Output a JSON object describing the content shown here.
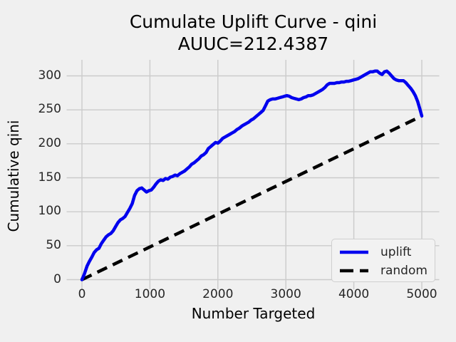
{
  "title": {
    "line1": "Cumulate Uplift Curve - qini",
    "line2": "AUUC=212.4387"
  },
  "axes": {
    "xlabel": "Number Targeted",
    "ylabel": "Cumulative qini"
  },
  "legend": {
    "items": [
      {
        "label": "uplift",
        "color": "#0000ee",
        "style": "solid"
      },
      {
        "label": "random",
        "color": "#000000",
        "style": "dashed"
      }
    ]
  },
  "colors": {
    "background": "#f0f0f0",
    "grid": "#cbcbcb",
    "uplift": "#0000ee",
    "random": "#000000",
    "tick_text": "#262626"
  },
  "chart_data": {
    "type": "line",
    "title": "Cumulate Uplift Curve - qini AUUC=212.4387",
    "xlabel": "Number Targeted",
    "ylabel": "Cumulative qini",
    "xticks": [
      0,
      1000,
      2000,
      3000,
      4000,
      5000
    ],
    "yticks": [
      0,
      50,
      100,
      150,
      200,
      250,
      300
    ],
    "xlim": [
      -225,
      5260
    ],
    "ylim": [
      -14,
      323
    ],
    "grid": true,
    "legend_position": "lower right",
    "auuc": 212.4387,
    "series": [
      {
        "name": "uplift",
        "color": "#0000ee",
        "style": "solid",
        "points": [
          [
            0,
            0
          ],
          [
            35,
            8
          ],
          [
            75,
            20
          ],
          [
            110,
            27
          ],
          [
            145,
            33
          ],
          [
            180,
            40
          ],
          [
            215,
            44
          ],
          [
            250,
            46
          ],
          [
            285,
            53
          ],
          [
            320,
            58
          ],
          [
            355,
            63
          ],
          [
            390,
            66
          ],
          [
            425,
            68
          ],
          [
            460,
            72
          ],
          [
            495,
            78
          ],
          [
            530,
            84
          ],
          [
            565,
            88
          ],
          [
            600,
            90
          ],
          [
            635,
            93
          ],
          [
            670,
            99
          ],
          [
            705,
            105
          ],
          [
            740,
            112
          ],
          [
            775,
            124
          ],
          [
            810,
            131
          ],
          [
            845,
            134
          ],
          [
            880,
            135
          ],
          [
            915,
            132
          ],
          [
            950,
            129
          ],
          [
            985,
            131
          ],
          [
            1020,
            132
          ],
          [
            1055,
            136
          ],
          [
            1090,
            141
          ],
          [
            1125,
            145
          ],
          [
            1160,
            147
          ],
          [
            1195,
            146
          ],
          [
            1230,
            149
          ],
          [
            1265,
            148
          ],
          [
            1300,
            151
          ],
          [
            1335,
            152
          ],
          [
            1370,
            154
          ],
          [
            1405,
            153
          ],
          [
            1440,
            156
          ],
          [
            1475,
            158
          ],
          [
            1510,
            160
          ],
          [
            1545,
            163
          ],
          [
            1580,
            166
          ],
          [
            1615,
            170
          ],
          [
            1650,
            172
          ],
          [
            1685,
            175
          ],
          [
            1720,
            178
          ],
          [
            1755,
            182
          ],
          [
            1790,
            184
          ],
          [
            1825,
            187
          ],
          [
            1860,
            193
          ],
          [
            1895,
            196
          ],
          [
            1930,
            199
          ],
          [
            1965,
            202
          ],
          [
            2000,
            201
          ],
          [
            2035,
            204
          ],
          [
            2070,
            208
          ],
          [
            2105,
            210
          ],
          [
            2140,
            212
          ],
          [
            2175,
            214
          ],
          [
            2210,
            216
          ],
          [
            2245,
            218
          ],
          [
            2280,
            221
          ],
          [
            2315,
            223
          ],
          [
            2350,
            226
          ],
          [
            2385,
            228
          ],
          [
            2420,
            230
          ],
          [
            2455,
            232
          ],
          [
            2490,
            235
          ],
          [
            2525,
            237
          ],
          [
            2560,
            240
          ],
          [
            2595,
            243
          ],
          [
            2630,
            246
          ],
          [
            2665,
            249
          ],
          [
            2700,
            256
          ],
          [
            2735,
            263
          ],
          [
            2770,
            265
          ],
          [
            2805,
            266
          ],
          [
            2840,
            266
          ],
          [
            2875,
            267
          ],
          [
            2910,
            268
          ],
          [
            2945,
            269
          ],
          [
            2980,
            270
          ],
          [
            3015,
            271
          ],
          [
            3050,
            270
          ],
          [
            3085,
            268
          ],
          [
            3120,
            267
          ],
          [
            3155,
            266
          ],
          [
            3190,
            265
          ],
          [
            3225,
            266
          ],
          [
            3260,
            268
          ],
          [
            3295,
            269
          ],
          [
            3330,
            271
          ],
          [
            3365,
            271
          ],
          [
            3400,
            272
          ],
          [
            3435,
            274
          ],
          [
            3470,
            276
          ],
          [
            3505,
            278
          ],
          [
            3540,
            280
          ],
          [
            3575,
            283
          ],
          [
            3610,
            287
          ],
          [
            3645,
            289
          ],
          [
            3680,
            289
          ],
          [
            3715,
            289
          ],
          [
            3750,
            290
          ],
          [
            3785,
            290
          ],
          [
            3820,
            291
          ],
          [
            3855,
            291
          ],
          [
            3890,
            292
          ],
          [
            3925,
            292
          ],
          [
            3960,
            293
          ],
          [
            3995,
            294
          ],
          [
            4030,
            295
          ],
          [
            4065,
            296
          ],
          [
            4100,
            298
          ],
          [
            4135,
            300
          ],
          [
            4170,
            302
          ],
          [
            4205,
            304
          ],
          [
            4240,
            306
          ],
          [
            4275,
            306
          ],
          [
            4310,
            307
          ],
          [
            4345,
            307
          ],
          [
            4380,
            304
          ],
          [
            4415,
            302
          ],
          [
            4450,
            306
          ],
          [
            4485,
            307
          ],
          [
            4520,
            304
          ],
          [
            4555,
            300
          ],
          [
            4590,
            296
          ],
          [
            4625,
            294
          ],
          [
            4660,
            293
          ],
          [
            4695,
            293
          ],
          [
            4730,
            293
          ],
          [
            4765,
            290
          ],
          [
            4800,
            286
          ],
          [
            4835,
            282
          ],
          [
            4870,
            277
          ],
          [
            4905,
            271
          ],
          [
            4940,
            262
          ],
          [
            4970,
            252
          ],
          [
            5000,
            241
          ]
        ]
      },
      {
        "name": "random",
        "color": "#000000",
        "style": "dashed",
        "points": [
          [
            0,
            0
          ],
          [
            5000,
            241
          ]
        ]
      }
    ]
  }
}
